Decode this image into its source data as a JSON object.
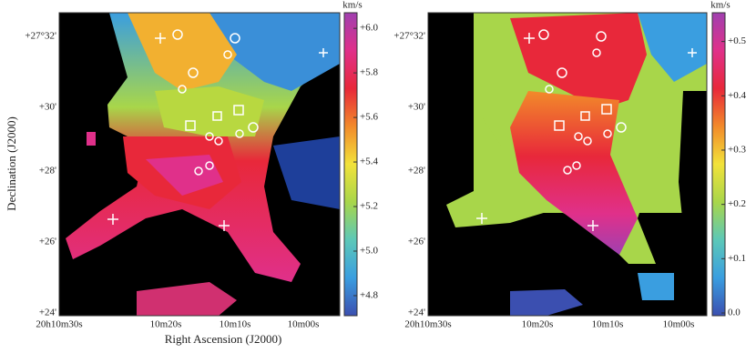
{
  "y_axis_title": "Declination (J2000)",
  "x_axis_title": "Right Ascension (J2000)",
  "panels": [
    {
      "dec_labels": [
        "+27°32'",
        "+30'",
        "+28'",
        "+26'",
        "+24'"
      ],
      "ra_labels": [
        "20h10m30s",
        "10m20s",
        "10m10s",
        "10m00s"
      ],
      "colorbar": {
        "unit": "km/s",
        "lim": [
          4.71,
          6.07
        ],
        "colors": [
          "#3b4fb0",
          "#3a9ee0",
          "#5cc8b8",
          "#a8d64a",
          "#f2e23a",
          "#f28a2a",
          "#e8283a",
          "#e0308a",
          "#a040b0"
        ],
        "ticks": [
          {
            "value": 6.0,
            "label": "+6.0"
          },
          {
            "value": 5.8,
            "label": "+5.8"
          },
          {
            "value": 5.6,
            "label": "+5.6"
          },
          {
            "value": 5.4,
            "label": "+5.4"
          },
          {
            "value": 5.2,
            "label": "+5.2"
          },
          {
            "value": 5.0,
            "label": "+5.0"
          },
          {
            "value": 4.8,
            "label": "+4.8"
          }
        ]
      }
    },
    {
      "dec_labels": [
        "+27°32'",
        "+30'",
        "+28'",
        "+26'",
        "+24'"
      ],
      "ra_labels": [
        "20h10m30s",
        "10m20s",
        "10m10s",
        "10m00s"
      ],
      "colorbar": {
        "unit": "km/s",
        "lim": [
          -0.005,
          0.553
        ],
        "colors": [
          "#3b4fb0",
          "#3a9ee0",
          "#5cc8b8",
          "#a8d64a",
          "#f2e23a",
          "#f28a2a",
          "#e8283a",
          "#e0308a",
          "#a040b0"
        ],
        "ticks": [
          {
            "value": 0.5,
            "label": "+0.5"
          },
          {
            "value": 0.4,
            "label": "+0.4"
          },
          {
            "value": 0.3,
            "label": "+0.3"
          },
          {
            "value": 0.2,
            "label": "+0.2"
          },
          {
            "value": 0.1,
            "label": "+0.1"
          },
          {
            "value": 0.0,
            "label": "0.0"
          }
        ]
      }
    }
  ]
}
